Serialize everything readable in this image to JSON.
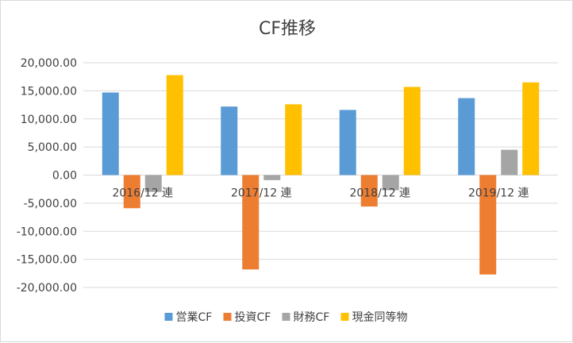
{
  "chart_data": {
    "type": "bar",
    "title": "CF推移",
    "categories": [
      "2016/12 連",
      "2017/12 連",
      "2018/12 連",
      "2019/12 連"
    ],
    "series": [
      {
        "name": "営業CF",
        "color": "#5b9bd5",
        "values": [
          14700,
          12200,
          11600,
          13700
        ]
      },
      {
        "name": "投資CF",
        "color": "#ed7d31",
        "values": [
          -5900,
          -16800,
          -5600,
          -17700
        ]
      },
      {
        "name": "財務CF",
        "color": "#a5a5a5",
        "values": [
          -3000,
          -900,
          -2700,
          4500
        ]
      },
      {
        "name": "現金同等物",
        "color": "#ffc000",
        "values": [
          17800,
          12600,
          15700,
          16500
        ]
      }
    ],
    "ylim": [
      -20000,
      20000
    ],
    "yticks": [
      "20,000.00",
      "15,000.00",
      "10,000.00",
      "5,000.00",
      "0.00",
      "-5,000.00",
      "-10,000.00",
      "-15,000.00",
      "-20,000.00"
    ],
    "ytick_values": [
      20000,
      15000,
      10000,
      5000,
      0,
      -5000,
      -10000,
      -15000,
      -20000
    ],
    "grid": true,
    "legend_position": "bottom"
  }
}
